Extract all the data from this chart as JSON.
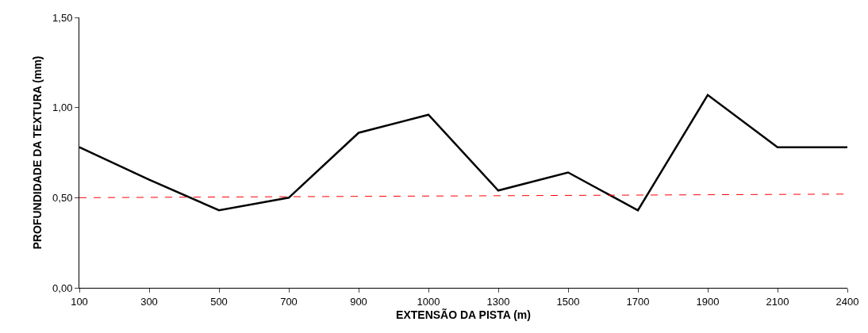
{
  "chart_data": {
    "type": "line",
    "xlabel": "EXTENSÃO DA PISTA (m)",
    "ylabel": "PROFUNDIDADE DA TEXTURA (mm)",
    "categories": [
      "100",
      "300",
      "500",
      "700",
      "900",
      "1000",
      "1300",
      "1500",
      "1700",
      "1900",
      "2100",
      "2400"
    ],
    "series": [
      {
        "color": "#000000",
        "values": [
          0.78,
          0.6,
          0.43,
          0.5,
          0.86,
          0.96,
          0.54,
          0.64,
          0.43,
          1.07,
          0.78,
          0.78
        ],
        "line_style": "solid"
      },
      {
        "color": "#ff0000",
        "values": [
          0.5,
          null,
          null,
          null,
          null,
          null,
          null,
          null,
          null,
          null,
          null,
          0.52
        ],
        "line_style": "dashed"
      }
    ],
    "ylim": [
      0,
      1.5
    ],
    "yticks": [
      {
        "value": 0,
        "label": "0,00"
      },
      {
        "value": 0.5,
        "label": "0,50"
      },
      {
        "value": 1,
        "label": "1,00"
      },
      {
        "value": 1.5,
        "label": "1,50"
      }
    ],
    "legend": false,
    "marker": "none"
  }
}
